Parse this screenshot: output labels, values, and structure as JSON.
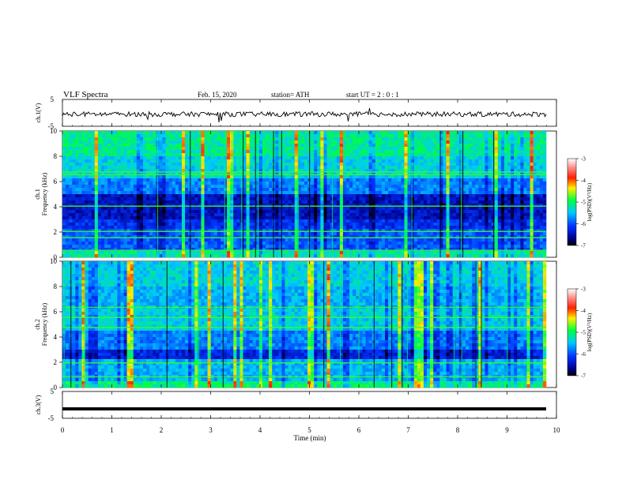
{
  "header": {
    "title": "VLF  Spectra",
    "date": "Feb. 15, 2020",
    "station": "station= ATH",
    "start_ut": "start  UT  =    2  : 0   : 1"
  },
  "chart_data": [
    {
      "type": "line",
      "panel": "ch1-waveform",
      "ylabel": "ch.1(V)",
      "ylim": [
        -5,
        5
      ],
      "yticks": [
        "5",
        "-5"
      ],
      "xlim": [
        0,
        10
      ],
      "description_values": "noisy waveform around ~ -0.5 V with spikes"
    },
    {
      "type": "heatmap",
      "panel": "ch1-spectrogram",
      "ylabel": "ch.1\nFrequency  (kHz)",
      "ylim": [
        0,
        10
      ],
      "yticks": [
        "0",
        "2",
        "4",
        "6",
        "8",
        "10"
      ],
      "xlim": [
        0,
        10
      ],
      "colorbar": {
        "label": "log(PSD)(V²/Hz)",
        "range": [
          -7,
          -3
        ],
        "ticks": [
          "-3",
          "-4",
          "-5",
          "-6",
          "-7"
        ]
      }
    },
    {
      "type": "heatmap",
      "panel": "ch2-spectrogram",
      "ylabel": "ch.2\nFrequency  (kHz)",
      "ylim": [
        0,
        10
      ],
      "yticks": [
        "0",
        "2",
        "4",
        "6",
        "8",
        "10"
      ],
      "xlim": [
        0,
        10
      ],
      "colorbar": {
        "label": "log(PSD)(V²/Hz)",
        "range": [
          -7,
          -3
        ],
        "ticks": [
          "-3",
          "-4",
          "-5",
          "-6",
          "-7"
        ]
      }
    },
    {
      "type": "line",
      "panel": "ch3-waveform",
      "ylabel": "ch.3(V)",
      "ylim": [
        -5,
        5
      ],
      "yticks": [
        "5",
        "-5"
      ],
      "xlim": [
        0,
        10
      ],
      "level": -1.5
    }
  ],
  "xaxis": {
    "label": "Time  (min)",
    "ticks": [
      "0",
      "1",
      "2",
      "3",
      "4",
      "5",
      "6",
      "7",
      "8",
      "9",
      "10"
    ]
  }
}
